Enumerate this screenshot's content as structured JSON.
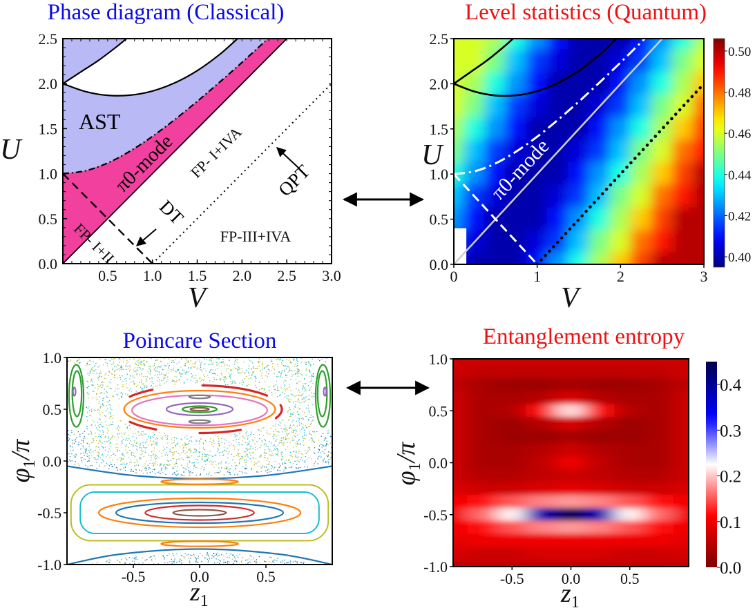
{
  "chart_data": [
    {
      "id": "phase",
      "type": "line",
      "title": "Phase diagram (Classical)",
      "title_color": "#0a0ae6",
      "xlabel": "V",
      "ylabel": "U",
      "xlim": [
        0,
        3
      ],
      "ylim": [
        0,
        2.5
      ],
      "xticks": [
        "0.5",
        "1.0",
        "1.5",
        "2.0",
        "2.5",
        "3.0"
      ],
      "yticks": [
        "0.0",
        "0.5",
        "1.0",
        "1.5",
        "2.0",
        "2.5"
      ],
      "fill_colors": {
        "ast": "#b9b9f5",
        "pi0": "#f2409f"
      },
      "curves": {
        "upper": [
          [
            0,
            2
          ],
          [
            0.2,
            2.13
          ],
          [
            0.4,
            2.26
          ],
          [
            0.6,
            2.41
          ],
          [
            0.71,
            2.5
          ]
        ],
        "lower": [
          [
            0,
            2
          ],
          [
            0.25,
            1.913
          ],
          [
            0.5,
            1.87
          ],
          [
            0.75,
            1.872
          ],
          [
            1,
            1.918
          ],
          [
            1.25,
            2.009
          ],
          [
            1.5,
            2.144
          ],
          [
            1.75,
            2.324
          ],
          [
            1.95,
            2.5
          ]
        ],
        "dashdot": [
          [
            0,
            1
          ],
          [
            0.25,
            1.031
          ],
          [
            0.5,
            1.118
          ],
          [
            0.75,
            1.25
          ],
          [
            1,
            1.414
          ],
          [
            1.25,
            1.601
          ],
          [
            1.5,
            1.803
          ],
          [
            1.75,
            2.016
          ],
          [
            2,
            2.236
          ],
          [
            2.29,
            2.5
          ]
        ],
        "diagonal": [
          [
            0,
            0
          ],
          [
            2.5,
            2.5
          ]
        ],
        "dashed": [
          [
            0,
            1
          ],
          [
            1,
            0
          ]
        ],
        "dotted": [
          [
            1,
            0
          ],
          [
            3,
            2
          ]
        ]
      },
      "labels": {
        "ast": "AST",
        "pi0": "π0-mode",
        "fp_i_iva": "FP- I+IVA",
        "fp_i_ii": "FP- I+II",
        "dt": "DT",
        "qpt": "QPT",
        "fp_iii_iva": "FP-III+IVA"
      }
    },
    {
      "id": "level",
      "type": "heatmap",
      "title": "Level statistics  (Quantum)",
      "title_color": "#ee1111",
      "xlabel": "V",
      "ylabel": "U",
      "xlim": [
        0,
        3
      ],
      "ylim": [
        0,
        2.5
      ],
      "xticks": [
        "0",
        "1",
        "2",
        "3"
      ],
      "yticks": [
        "0.0",
        "0.5",
        "1.0",
        "1.5",
        "2.0",
        "2.5"
      ],
      "colorbar": {
        "range": [
          0.395,
          0.506
        ],
        "ticks": [
          "0.40",
          "0.42",
          "0.44",
          "0.46",
          "0.48",
          "0.50"
        ],
        "colormap": "jet"
      },
      "x": [
        0,
        0.25,
        0.5,
        0.75,
        1,
        1.25,
        1.5,
        1.75,
        2,
        2.25,
        2.5,
        2.75,
        3
      ],
      "y": [
        2.5,
        2.25,
        2,
        1.75,
        1.5,
        1.25,
        1,
        0.75,
        0.5,
        0.25,
        0
      ],
      "z": [
        [
          0.46,
          0.46,
          0.455,
          0.44,
          0.425,
          0.41,
          0.4,
          0.4,
          0.4,
          0.41,
          0.425,
          0.44,
          0.455
        ],
        [
          0.46,
          0.46,
          0.45,
          0.43,
          0.415,
          0.405,
          0.4,
          0.4,
          0.405,
          0.415,
          0.43,
          0.45,
          0.46
        ],
        [
          0.46,
          0.455,
          0.44,
          0.425,
          0.41,
          0.4,
          0.4,
          0.4,
          0.41,
          0.425,
          0.44,
          0.455,
          0.47
        ],
        [
          0.46,
          0.45,
          0.43,
          0.415,
          0.405,
          0.4,
          0.4,
          0.405,
          0.415,
          0.43,
          0.45,
          0.46,
          0.48
        ],
        [
          0.455,
          0.44,
          0.425,
          0.41,
          0.4,
          0.4,
          0.4,
          0.41,
          0.425,
          0.44,
          0.455,
          0.47,
          0.485
        ],
        [
          0.45,
          0.43,
          0.415,
          0.405,
          0.4,
          0.4,
          0.405,
          0.415,
          0.43,
          0.45,
          0.46,
          0.48,
          0.49
        ],
        [
          0.44,
          0.425,
          0.41,
          0.4,
          0.4,
          0.4,
          0.41,
          0.425,
          0.44,
          0.455,
          0.47,
          0.485,
          0.5
        ],
        [
          0.43,
          0.415,
          0.405,
          0.4,
          0.4,
          0.405,
          0.415,
          0.43,
          0.45,
          0.46,
          0.48,
          0.49,
          0.5
        ],
        [
          0.425,
          0.41,
          0.4,
          0.4,
          0.4,
          0.41,
          0.425,
          0.44,
          0.455,
          0.47,
          0.485,
          0.5,
          0.5
        ],
        [
          0.415,
          0.405,
          0.4,
          0.4,
          0.405,
          0.415,
          0.43,
          0.45,
          0.46,
          0.48,
          0.49,
          0.5,
          0.5
        ],
        [
          0.41,
          0.4,
          0.4,
          0.4,
          0.41,
          0.425,
          0.44,
          0.455,
          0.47,
          0.485,
          0.5,
          0.5,
          0.5
        ]
      ],
      "masked_region": {
        "v": [
          0,
          0.15
        ],
        "u": [
          0,
          0.4
        ]
      },
      "label": "π0-mode"
    },
    {
      "id": "poincare",
      "type": "scatter",
      "title": "Poincare Section",
      "title_color": "#0a0ae6",
      "xlabel": "z",
      "xlabel_sub": "1",
      "ylabel": "φ",
      "ylabel_sub": "1",
      "ylabel_suffix": "/π",
      "xlim": [
        -1,
        1
      ],
      "ylim": [
        -1,
        1
      ],
      "xticks": [
        "-0.5",
        "0.0",
        "0.5"
      ],
      "yticks": [
        "-1.0",
        "-0.5",
        "0.0",
        "0.5",
        "1.0"
      ],
      "orbits": [
        {
          "z": 0,
          "phi": 0.5,
          "rz": 0.57,
          "rphi": 0.18,
          "color": "#ff7f0e"
        },
        {
          "z": 0,
          "phi": 0.49,
          "rz": 0.51,
          "rphi": 0.145,
          "color": "#e377c2"
        },
        {
          "z": 0,
          "phi": 0.5,
          "rz": 0.25,
          "rphi": 0.06,
          "color": "#9467bd"
        },
        {
          "z": 0,
          "phi": 0.5,
          "rz": 0.13,
          "rphi": 0.03,
          "color": "#2ca02c"
        },
        {
          "z": 0,
          "phi": 0.5,
          "rz": 0.07,
          "rphi": 0.014,
          "color": "#8c564b"
        },
        {
          "z": 0,
          "phi": 0.62,
          "rz": 0.08,
          "rphi": 0.015,
          "color": "#7f7f7f"
        },
        {
          "z": 0,
          "phi": 0.38,
          "rz": 0.08,
          "rphi": 0.015,
          "color": "#7f7f7f"
        },
        {
          "z": 0,
          "phi": -0.5,
          "rz": 0.97,
          "rphi": 0.27,
          "color": "#bcbd22",
          "box": true
        },
        {
          "z": 0,
          "phi": -0.5,
          "rz": 0.9,
          "rphi": 0.2,
          "color": "#17becf",
          "box": true
        },
        {
          "z": 0,
          "phi": -0.5,
          "rz": 0.76,
          "rphi": 0.14,
          "color": "#ff7f0e"
        },
        {
          "z": 0,
          "phi": -0.5,
          "rz": 0.63,
          "rphi": 0.1,
          "color": "#1f77b4"
        },
        {
          "z": 0,
          "phi": -0.5,
          "rz": 0.41,
          "rphi": 0.07,
          "color": "#d62728"
        },
        {
          "z": 0,
          "phi": -0.5,
          "rz": 0.2,
          "rphi": 0.03,
          "color": "#8c564b"
        },
        {
          "z": 0,
          "phi": -0.2,
          "rz": 0.29,
          "rphi": 0.025,
          "color": "#ff7f0e"
        },
        {
          "z": 0,
          "phi": -0.8,
          "rz": 0.29,
          "rphi": 0.025,
          "color": "#ff7f0e"
        },
        {
          "z": -0.93,
          "phi": 0.63,
          "rz": 0.055,
          "rphi": 0.3,
          "color": "#2ca02c"
        },
        {
          "z": -0.925,
          "phi": 0.65,
          "rz": 0.035,
          "rphi": 0.22,
          "color": "#2ca02c"
        },
        {
          "z": -0.945,
          "phi": 0.67,
          "rz": 0.01,
          "rphi": 0.04,
          "color": "#9467bd"
        },
        {
          "z": 0.93,
          "phi": 0.63,
          "rz": 0.055,
          "rphi": 0.3,
          "color": "#2ca02c"
        },
        {
          "z": 0.925,
          "phi": 0.65,
          "rz": 0.035,
          "rphi": 0.22,
          "color": "#2ca02c"
        },
        {
          "z": 0.945,
          "phi": 0.67,
          "rz": 0.01,
          "rphi": 0.04,
          "color": "#9467bd"
        }
      ],
      "island_chain": {
        "z": 0,
        "phi": 0.5,
        "rz": 0.62,
        "rphi": 0.23,
        "color": "#d62728",
        "arcs": [
          [
            35,
            88
          ],
          [
            125,
            148
          ],
          [
            -22,
            10
          ],
          [
            212,
            238
          ],
          [
            270,
            300
          ]
        ]
      },
      "separatrices": {
        "color": "#1f77b4",
        "top": [
          [
            -1,
            -0.05
          ],
          [
            -0.5,
            -0.14
          ],
          [
            0,
            -0.17
          ],
          [
            0.5,
            -0.14
          ],
          [
            1,
            -0.05
          ]
        ],
        "bottom": [
          [
            -1,
            -1
          ],
          [
            -0.6,
            -0.9
          ],
          [
            0,
            -0.85
          ],
          [
            0.6,
            -0.9
          ],
          [
            1,
            -1
          ]
        ]
      },
      "chaotic_points": 2600,
      "chaotic_colors": [
        "#17becf",
        "#bcbd22",
        "#1f77b4"
      ]
    },
    {
      "id": "entropy",
      "type": "heatmap",
      "title": "Entanglement entropy",
      "title_color": "#ee1111",
      "xlabel": "z",
      "xlabel_sub": "1",
      "ylabel": "φ",
      "ylabel_sub": "1",
      "ylabel_suffix": "/π",
      "xlim": [
        -1,
        1
      ],
      "ylim": [
        -1,
        1
      ],
      "xticks": [
        "-0.5",
        "0.0",
        "0.5"
      ],
      "yticks": [
        "-1.0",
        "-0.5",
        "0.0",
        "0.5",
        "1.0"
      ],
      "colorbar": {
        "range": [
          0,
          0.45
        ],
        "ticks": [
          "0.0",
          "0.1",
          "0.2",
          "0.3",
          "0.4"
        ],
        "colormap": "seismic_r"
      },
      "x": [
        -1,
        -0.75,
        -0.5,
        -0.25,
        0,
        0.25,
        0.5,
        0.75,
        1
      ],
      "y": [
        1,
        0.875,
        0.75,
        0.625,
        0.5,
        0.375,
        0.25,
        0.125,
        0,
        -0.125,
        -0.25,
        -0.375,
        -0.5,
        -0.625,
        -0.75,
        -0.875,
        -1
      ],
      "z": [
        [
          0.07,
          0.07,
          0.07,
          0.07,
          0.07,
          0.07,
          0.07,
          0.07,
          0.07
        ],
        [
          0.07,
          0.06,
          0.06,
          0.06,
          0.06,
          0.06,
          0.06,
          0.06,
          0.07
        ],
        [
          0.06,
          0.04,
          0.03,
          0.03,
          0.04,
          0.03,
          0.03,
          0.04,
          0.06
        ],
        [
          0.07,
          0.04,
          0.04,
          0.05,
          0.08,
          0.05,
          0.04,
          0.04,
          0.07
        ],
        [
          0.07,
          0.04,
          0.05,
          0.12,
          0.21,
          0.12,
          0.05,
          0.04,
          0.07
        ],
        [
          0.07,
          0.04,
          0.03,
          0.05,
          0.08,
          0.05,
          0.03,
          0.04,
          0.07
        ],
        [
          0.07,
          0.04,
          0.03,
          0.03,
          0.04,
          0.03,
          0.03,
          0.04,
          0.07
        ],
        [
          0.07,
          0.04,
          0.04,
          0.05,
          0.07,
          0.05,
          0.04,
          0.04,
          0.07
        ],
        [
          0.07,
          0.04,
          0.04,
          0.06,
          0.1,
          0.06,
          0.04,
          0.04,
          0.07
        ],
        [
          0.07,
          0.05,
          0.05,
          0.06,
          0.07,
          0.06,
          0.05,
          0.05,
          0.07
        ],
        [
          0.08,
          0.07,
          0.07,
          0.08,
          0.09,
          0.08,
          0.07,
          0.07,
          0.08
        ],
        [
          0.1,
          0.12,
          0.15,
          0.17,
          0.18,
          0.17,
          0.15,
          0.12,
          0.1
        ],
        [
          0.1,
          0.16,
          0.22,
          0.38,
          0.45,
          0.38,
          0.22,
          0.16,
          0.1
        ],
        [
          0.1,
          0.12,
          0.15,
          0.17,
          0.18,
          0.17,
          0.15,
          0.12,
          0.1
        ],
        [
          0.09,
          0.1,
          0.1,
          0.1,
          0.1,
          0.1,
          0.1,
          0.1,
          0.09
        ],
        [
          0.08,
          0.07,
          0.07,
          0.08,
          0.08,
          0.08,
          0.07,
          0.07,
          0.08
        ],
        [
          0.06,
          0.06,
          0.06,
          0.06,
          0.06,
          0.06,
          0.06,
          0.06,
          0.06
        ]
      ]
    }
  ]
}
